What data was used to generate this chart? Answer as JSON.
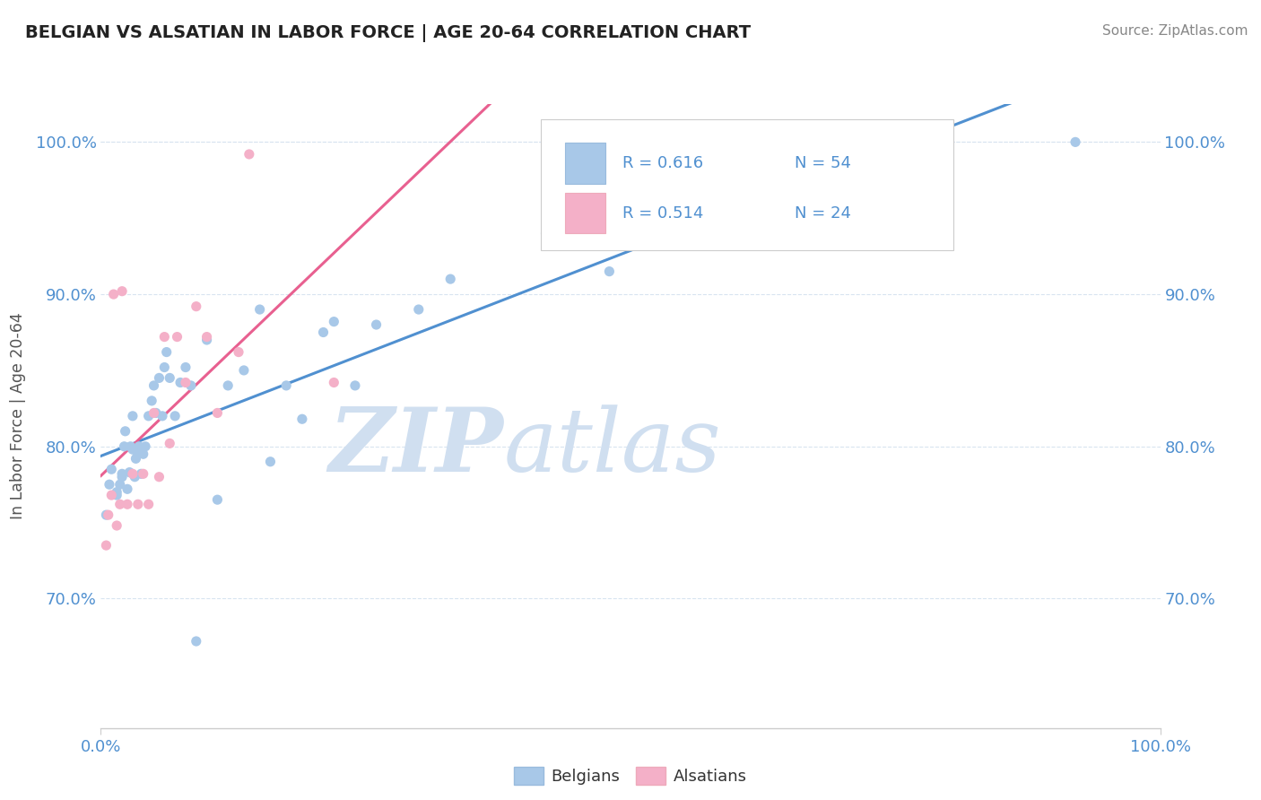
{
  "title": "BELGIAN VS ALSATIAN IN LABOR FORCE | AGE 20-64 CORRELATION CHART",
  "source": "Source: ZipAtlas.com",
  "ylabel": "In Labor Force | Age 20-64",
  "xlim": [
    0.0,
    1.0
  ],
  "ylim": [
    0.615,
    1.025
  ],
  "y_tick_vals": [
    0.7,
    0.8,
    0.9,
    1.0
  ],
  "y_tick_labels": [
    "70.0%",
    "80.0%",
    "90.0%",
    "100.0%"
  ],
  "x_tick_vals": [
    0.0,
    1.0
  ],
  "x_tick_labels": [
    "0.0%",
    "100.0%"
  ],
  "belgian_R": 0.616,
  "belgian_N": 54,
  "alsatian_R": 0.514,
  "alsatian_N": 24,
  "belgian_color": "#a8c8e8",
  "alsatian_color": "#f4b0c8",
  "belgian_line_color": "#5090d0",
  "alsatian_line_color": "#e86090",
  "tick_color": "#5090d0",
  "watermark_color": "#d0dff0",
  "background_color": "#ffffff",
  "grid_color": "#d8e4f0",
  "legend_border_color": "#cccccc",
  "title_color": "#222222",
  "source_color": "#888888",
  "belgians_x": [
    0.005,
    0.008,
    0.01,
    0.015,
    0.015,
    0.018,
    0.02,
    0.02,
    0.022,
    0.023,
    0.025,
    0.027,
    0.028,
    0.03,
    0.03,
    0.032,
    0.033,
    0.035,
    0.036,
    0.038,
    0.04,
    0.042,
    0.045,
    0.048,
    0.05,
    0.052,
    0.055,
    0.058,
    0.06,
    0.062,
    0.065,
    0.07,
    0.075,
    0.08,
    0.085,
    0.09,
    0.1,
    0.11,
    0.12,
    0.135,
    0.15,
    0.16,
    0.175,
    0.19,
    0.21,
    0.22,
    0.24,
    0.26,
    0.3,
    0.33,
    0.42,
    0.48,
    0.6,
    0.92
  ],
  "belgians_y": [
    0.755,
    0.775,
    0.785,
    0.768,
    0.77,
    0.775,
    0.78,
    0.782,
    0.8,
    0.81,
    0.772,
    0.783,
    0.8,
    0.798,
    0.82,
    0.78,
    0.792,
    0.795,
    0.8,
    0.782,
    0.795,
    0.8,
    0.82,
    0.83,
    0.84,
    0.822,
    0.845,
    0.82,
    0.852,
    0.862,
    0.845,
    0.82,
    0.842,
    0.852,
    0.84,
    0.672,
    0.87,
    0.765,
    0.84,
    0.85,
    0.89,
    0.79,
    0.84,
    0.818,
    0.875,
    0.882,
    0.84,
    0.88,
    0.89,
    0.91,
    0.94,
    0.915,
    0.96,
    1.0
  ],
  "alsatians_x": [
    0.005,
    0.007,
    0.01,
    0.012,
    0.015,
    0.018,
    0.02,
    0.025,
    0.03,
    0.035,
    0.04,
    0.045,
    0.05,
    0.055,
    0.06,
    0.065,
    0.072,
    0.08,
    0.09,
    0.1,
    0.11,
    0.13,
    0.14,
    0.22
  ],
  "alsatians_y": [
    0.735,
    0.755,
    0.768,
    0.9,
    0.748,
    0.762,
    0.902,
    0.762,
    0.782,
    0.762,
    0.782,
    0.762,
    0.822,
    0.78,
    0.872,
    0.802,
    0.872,
    0.842,
    0.892,
    0.872,
    0.822,
    0.862,
    0.992,
    0.842
  ]
}
